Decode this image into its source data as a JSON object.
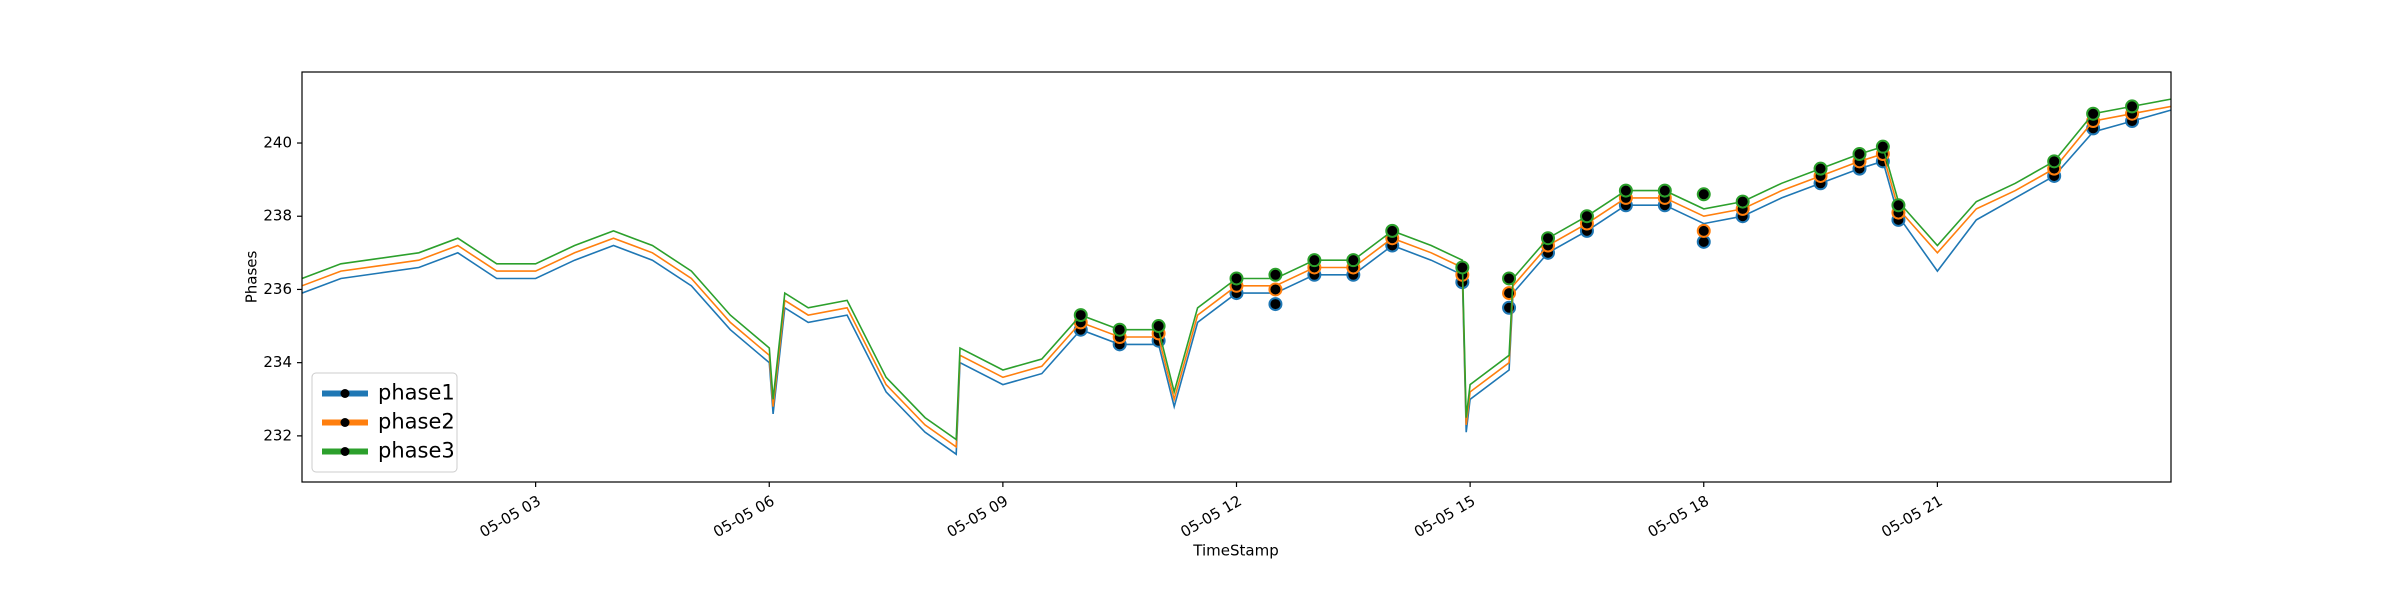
{
  "chart_data": {
    "type": "line",
    "xlabel": "TimeStamp",
    "ylabel": "Phases",
    "x": [
      0,
      0.5,
      1,
      1.5,
      2,
      2.5,
      3,
      3.5,
      4,
      4.5,
      5,
      5.5,
      6,
      6.05,
      6.2,
      6.5,
      7,
      7.5,
      8,
      8.4,
      8.45,
      9,
      9.5,
      10,
      10.5,
      11,
      11.2,
      11.5,
      12,
      12.5,
      13,
      13.5,
      14,
      14.5,
      14.9,
      14.95,
      15,
      15.5,
      15.55,
      16,
      16.5,
      17,
      17.5,
      18,
      18.5,
      19,
      19.5,
      20,
      20.3,
      20.5,
      21,
      21.5,
      22,
      22.5,
      23,
      23.5,
      24
    ],
    "series": [
      {
        "name": "phase1",
        "color": "#1f77b4",
        "values": [
          235.9,
          236.3,
          236.45,
          236.6,
          237.0,
          236.3,
          236.3,
          236.8,
          237.2,
          236.8,
          236.1,
          234.9,
          234.0,
          232.6,
          235.5,
          235.1,
          235.3,
          233.2,
          232.1,
          231.5,
          234.0,
          233.4,
          233.7,
          234.9,
          234.5,
          234.5,
          232.8,
          235.1,
          235.9,
          235.9,
          236.4,
          236.4,
          237.2,
          236.8,
          236.4,
          232.1,
          233.0,
          233.8,
          235.9,
          237.0,
          237.6,
          238.3,
          238.3,
          237.8,
          238.0,
          238.5,
          238.9,
          239.3,
          239.5,
          238.0,
          236.5,
          237.9,
          238.5,
          239.1,
          240.3,
          240.6,
          240.9
        ],
        "markers": {
          "x": [
            10,
            10.5,
            11,
            12,
            12.5,
            13,
            13.5,
            14,
            14.9,
            15.5,
            16,
            16.5,
            17,
            17.5,
            18,
            18.5,
            19.5,
            20,
            20.3,
            20.5,
            22.5,
            23,
            23.5
          ],
          "values": [
            234.9,
            234.5,
            234.6,
            235.9,
            235.6,
            236.4,
            236.4,
            237.2,
            236.2,
            235.5,
            237.0,
            237.6,
            238.3,
            238.3,
            237.3,
            238.0,
            238.9,
            239.3,
            239.5,
            237.9,
            239.1,
            240.4,
            240.6
          ]
        }
      },
      {
        "name": "phase2",
        "color": "#ff7f0e",
        "values": [
          236.1,
          236.5,
          236.65,
          236.8,
          237.2,
          236.5,
          236.5,
          237.0,
          237.4,
          237.0,
          236.3,
          235.1,
          234.2,
          232.8,
          235.7,
          235.3,
          235.5,
          233.4,
          232.3,
          231.7,
          234.2,
          233.6,
          233.9,
          235.1,
          234.7,
          234.7,
          233.0,
          235.3,
          236.1,
          236.1,
          236.6,
          236.6,
          237.4,
          237.0,
          236.6,
          232.3,
          233.2,
          234.0,
          236.1,
          237.2,
          237.8,
          238.5,
          238.5,
          238.0,
          238.2,
          238.7,
          239.1,
          239.5,
          239.7,
          238.2,
          237.0,
          238.2,
          238.7,
          239.3,
          240.6,
          240.8,
          241.0
        ],
        "markers": {
          "x": [
            10,
            10.5,
            11,
            12,
            12.5,
            13,
            13.5,
            14,
            14.9,
            15.5,
            16,
            16.5,
            17,
            17.5,
            18,
            18.5,
            19.5,
            20,
            20.3,
            20.5,
            22.5,
            23,
            23.5
          ],
          "values": [
            235.1,
            234.7,
            234.8,
            236.1,
            236.0,
            236.6,
            236.6,
            237.4,
            236.4,
            235.9,
            237.2,
            237.8,
            238.5,
            238.5,
            237.6,
            238.2,
            239.1,
            239.5,
            239.7,
            238.1,
            239.3,
            240.6,
            240.8
          ]
        }
      },
      {
        "name": "phase3",
        "color": "#2ca02c",
        "values": [
          236.3,
          236.7,
          236.85,
          237.0,
          237.4,
          236.7,
          236.7,
          237.2,
          237.6,
          237.2,
          236.5,
          235.3,
          234.4,
          233.0,
          235.9,
          235.5,
          235.7,
          233.6,
          232.5,
          231.9,
          234.4,
          233.8,
          234.1,
          235.3,
          234.9,
          234.9,
          233.2,
          235.5,
          236.3,
          236.3,
          236.8,
          236.8,
          237.6,
          237.2,
          236.8,
          232.5,
          233.4,
          234.2,
          236.3,
          237.4,
          238.0,
          238.7,
          238.7,
          238.2,
          238.4,
          238.9,
          239.3,
          239.7,
          239.9,
          238.4,
          237.2,
          238.4,
          238.9,
          239.5,
          240.8,
          241.0,
          241.2
        ],
        "markers": {
          "x": [
            10,
            10.5,
            11,
            12,
            12.5,
            13,
            13.5,
            14,
            14.9,
            15.5,
            16,
            16.5,
            17,
            17.5,
            18,
            18.5,
            19.5,
            20,
            20.3,
            20.5,
            22.5,
            23,
            23.5
          ],
          "values": [
            235.3,
            234.9,
            235.0,
            236.3,
            236.4,
            236.8,
            236.8,
            237.6,
            236.6,
            236.3,
            237.4,
            238.0,
            238.7,
            238.7,
            238.6,
            238.4,
            239.3,
            239.7,
            239.9,
            238.3,
            239.5,
            240.8,
            241.0
          ]
        }
      }
    ],
    "xlim": [
      0,
      24
    ],
    "xticks": [
      {
        "value": 3,
        "label": "05-05 03"
      },
      {
        "value": 6,
        "label": "05-05 06"
      },
      {
        "value": 9,
        "label": "05-05 09"
      },
      {
        "value": 12,
        "label": "05-05 12"
      },
      {
        "value": 15,
        "label": "05-05 15"
      },
      {
        "value": 18,
        "label": "05-05 18"
      },
      {
        "value": 21,
        "label": "05-05 21"
      }
    ],
    "ylim": [
      230.74,
      241.94
    ],
    "yticks": [
      232,
      234,
      236,
      238,
      240
    ],
    "grid": false,
    "legend": "lower left"
  }
}
